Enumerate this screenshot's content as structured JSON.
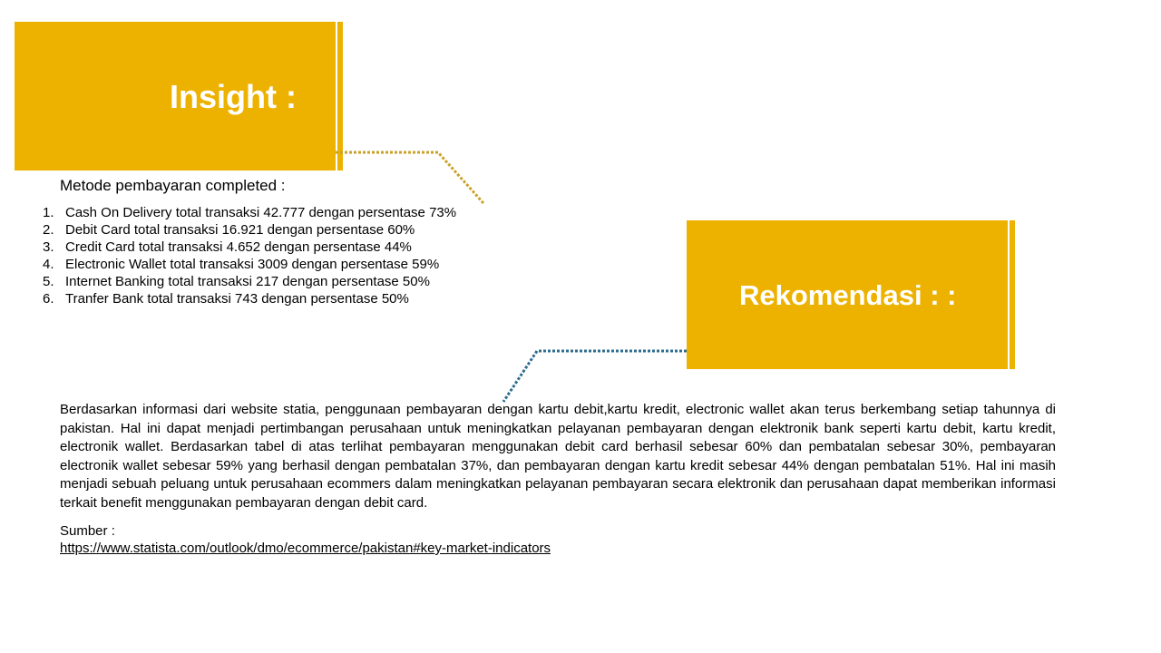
{
  "colors": {
    "accent": "#EDB200",
    "connector_insight": "#C9A227",
    "connector_rekomendasi": "#2E6C8E"
  },
  "insight": {
    "title": "Insight :",
    "subtitle": "Metode pembayaran completed :",
    "items": [
      {
        "num": "1.",
        "text": "Cash On Delivery total transaksi 42.777 dengan persentase 73%"
      },
      {
        "num": "2.",
        "text": "Debit Card total transaksi 16.921 dengan persentase 60%"
      },
      {
        "num": "3.",
        "text": "Credit Card total transaksi 4.652 dengan persentase 44%"
      },
      {
        "num": "4.",
        "text": "Electronic Wallet total transaksi 3009 dengan persentase 59%"
      },
      {
        "num": "5.",
        "text": "Internet  Banking total transaksi 217 dengan persentase 50%"
      },
      {
        "num": "6.",
        "text": "Tranfer Bank total transaksi 743 dengan persentase 50%"
      }
    ]
  },
  "rekomendasi": {
    "title": "Rekomendasi :  :",
    "paragraph": "Berdasarkan informasi dari website statia, penggunaan pembayaran dengan kartu debit,kartu kredit, electronic wallet akan terus berkembang setiap tahunnya di pakistan. Hal ini dapat menjadi pertimbangan perusahaan untuk meningkatkan pelayanan pembayaran dengan elektronik bank seperti kartu debit, kartu kredit, electronik wallet. Berdasarkan tabel di atas terlihat pembayaran menggunakan debit card berhasil sebesar 60% dan pembatalan sebesar 30%, pembayaran electronik wallet sebesar 59% yang berhasil dengan pembatalan 37%, dan pembayaran dengan kartu kredit sebesar 44% dengan pembatalan 51%. Hal ini masih menjadi sebuah peluang untuk perusahaan ecommers dalam meningkatkan pelayanan pembayaran secara elektronik dan perusahaan dapat memberikan informasi terkait benefit menggunakan  pembayaran dengan debit card.",
    "source_label": "Sumber :",
    "source_url": "https://www.statista.com/outlook/dmo/ecommerce/pakistan#key-market-indicators"
  }
}
